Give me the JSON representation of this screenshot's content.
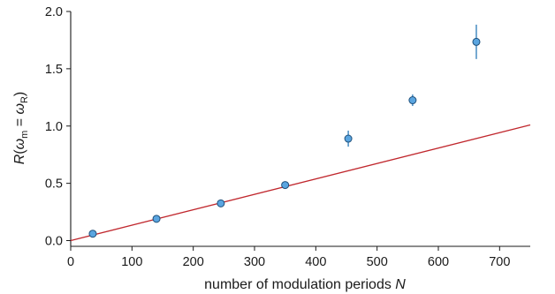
{
  "chart_data": {
    "type": "scatter",
    "title": "",
    "xlabel": "number of modulation periods N",
    "xlabel_parts": {
      "text": "number of modulation periods ",
      "italic": "N"
    },
    "ylabel_parts": {
      "R": "R",
      "open": "(",
      "omega1": "ω",
      "sub1": "m",
      "eq": " = ",
      "omega2": "ω",
      "sub2": "R",
      "close": ")"
    },
    "xlim": [
      0,
      750
    ],
    "ylim": [
      -0.05,
      2.0
    ],
    "x_ticks": [
      "0",
      "100",
      "200",
      "300",
      "400",
      "500",
      "600",
      "700"
    ],
    "y_ticks": [
      "0.0",
      "0.5",
      "1.0",
      "1.5",
      "2.0"
    ],
    "x_tick_values": [
      0,
      100,
      200,
      300,
      400,
      500,
      600,
      700
    ],
    "y_tick_values": [
      0.0,
      0.5,
      1.0,
      1.5,
      2.0
    ],
    "grid": false,
    "points": [
      {
        "x": 36,
        "y": 0.06,
        "err": 0.01
      },
      {
        "x": 140,
        "y": 0.19,
        "err": 0.015
      },
      {
        "x": 245,
        "y": 0.325,
        "err": 0.015
      },
      {
        "x": 350,
        "y": 0.485,
        "err": 0.025
      },
      {
        "x": 453,
        "y": 0.89,
        "err": 0.07
      },
      {
        "x": 558,
        "y": 1.225,
        "err": 0.05
      },
      {
        "x": 662,
        "y": 1.735,
        "err": 0.15
      }
    ],
    "fit_line": {
      "x": [
        0,
        750
      ],
      "y": [
        0.0,
        1.01
      ]
    },
    "colors": {
      "points": "#5aa5e0",
      "point_edge": "#1e4f7a",
      "error": "#2a7ab8",
      "fit": "#c0272d"
    }
  }
}
